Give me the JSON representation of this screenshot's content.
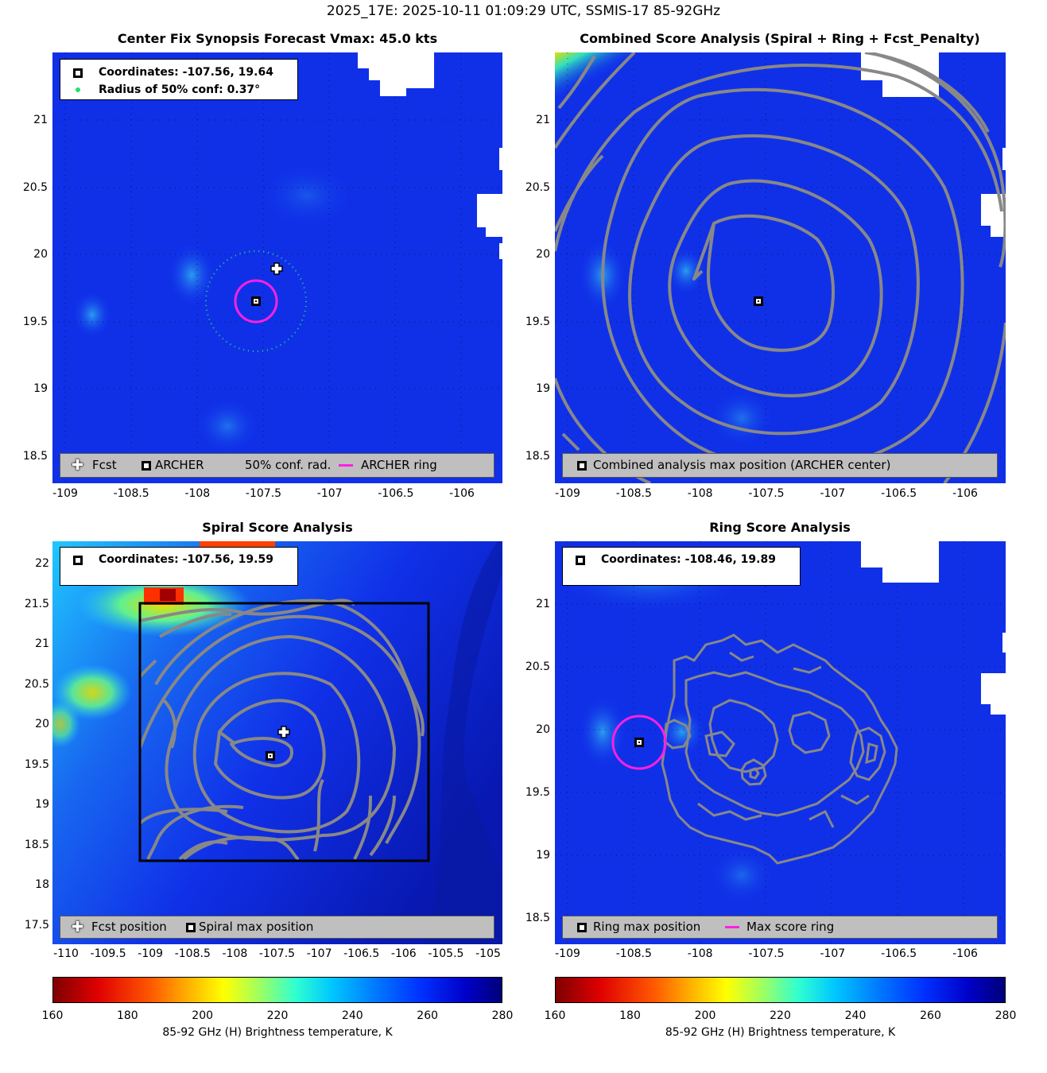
{
  "title": "2025_17E: 2025-10-11 01:09:29 UTC, SSMIS-17 85-92GHz",
  "panels": {
    "synopsis": {
      "title": "Center Fix Synopsis     Forecast Vmax: 45.0 kts",
      "info": [
        "Coordinates: -107.56, 19.64",
        "Radius of 50% conf: 0.37°"
      ],
      "legend": [
        "Fcst",
        "ARCHER",
        "50% conf. rad.",
        "ARCHER ring"
      ],
      "xticks": [
        "-109",
        "-108.5",
        "-108",
        "-107.5",
        "-107",
        "-106.5",
        "-106"
      ],
      "yticks": [
        "21",
        "20.5",
        "20",
        "19.5",
        "19",
        "18.5"
      ]
    },
    "combined": {
      "title": "Combined Score Analysis (Spiral + Ring + Fcst_Penalty)",
      "legend": [
        "Combined analysis max position (ARCHER center)"
      ],
      "xticks": [
        "-109",
        "-108.5",
        "-108",
        "-107.5",
        "-107",
        "-106.5",
        "-106"
      ],
      "yticks": [
        "21",
        "20.5",
        "20",
        "19.5",
        "19",
        "18.5"
      ]
    },
    "spiral": {
      "title": "Spiral Score Analysis",
      "info": [
        "Coordinates: -107.56, 19.59"
      ],
      "legend": [
        "Fcst position",
        "Spiral max position"
      ],
      "xticks": [
        "-110",
        "-109.5",
        "-109",
        "-108.5",
        "-108",
        "-107.5",
        "-107",
        "-106.5",
        "-106",
        "-105.5",
        "-105"
      ],
      "yticks": [
        "22",
        "21.5",
        "21",
        "20.5",
        "20",
        "19.5",
        "19",
        "18.5",
        "18",
        "17.5"
      ]
    },
    "ring": {
      "title": "Ring Score Analysis",
      "info": [
        "Coordinates: -108.46, 19.89"
      ],
      "legend": [
        "Ring max position",
        "Max score ring"
      ],
      "xticks": [
        "-109",
        "-108.5",
        "-108",
        "-107.5",
        "-107",
        "-106.5",
        "-106"
      ],
      "yticks": [
        "21",
        "20.5",
        "20",
        "19.5",
        "19",
        "18.5"
      ]
    }
  },
  "colorbar": {
    "ticks": [
      "160",
      "180",
      "200",
      "220",
      "240",
      "260",
      "280"
    ],
    "label": "85-92 GHz (H) Brightness temperature, K"
  },
  "chart_data": [
    {
      "type": "heatmap",
      "title": "Center Fix Synopsis     Forecast Vmax: 45.0 kts",
      "xlim": [
        -109.1,
        -105.7
      ],
      "ylim": [
        18.3,
        21.5
      ],
      "points": {
        "archer_center": [
          -107.56,
          19.64
        ],
        "forecast": [
          -107.4,
          19.88
        ]
      },
      "conf_radius_deg": 0.37,
      "clim": [
        160,
        280
      ]
    },
    {
      "type": "heatmap",
      "title": "Combined Score Analysis (Spiral + Ring + Fcst_Penalty)",
      "xlim": [
        -109.1,
        -105.7
      ],
      "ylim": [
        18.3,
        21.5
      ],
      "points": {
        "combined_max": [
          -107.56,
          19.64
        ]
      },
      "clim": [
        160,
        280
      ]
    },
    {
      "type": "heatmap",
      "title": "Spiral Score Analysis",
      "xlim": [
        -110.1,
        -104.9
      ],
      "ylim": [
        17.3,
        22.3
      ],
      "points": {
        "spiral_max": [
          -107.56,
          19.59
        ],
        "forecast": [
          -107.4,
          19.88
        ]
      },
      "clim": [
        160,
        280
      ]
    },
    {
      "type": "heatmap",
      "title": "Ring Score Analysis",
      "xlim": [
        -109.1,
        -105.7
      ],
      "ylim": [
        18.3,
        21.5
      ],
      "points": {
        "ring_max": [
          -108.46,
          19.89
        ]
      },
      "clim": [
        160,
        280
      ]
    }
  ]
}
